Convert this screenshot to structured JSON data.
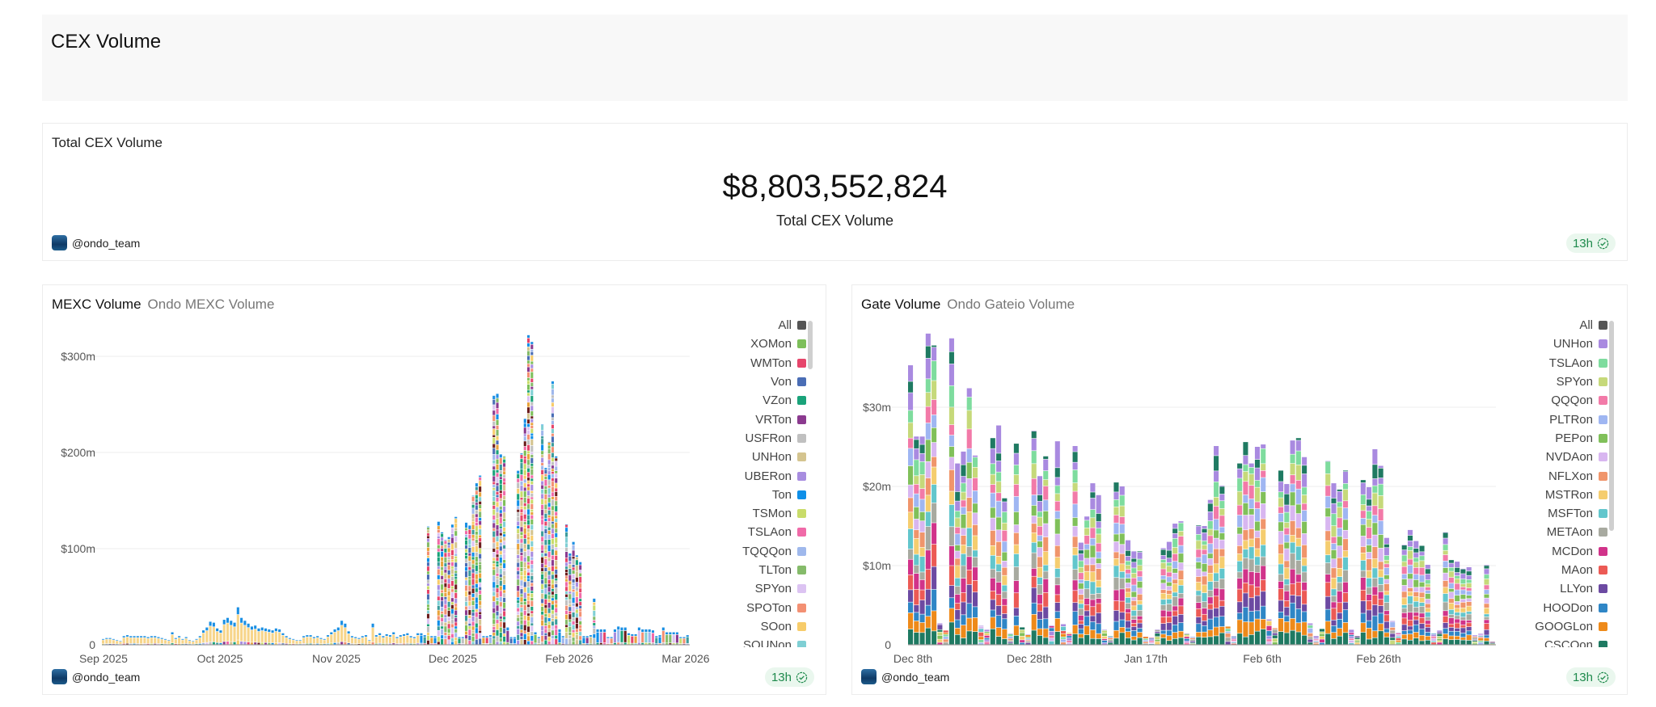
{
  "header": {
    "title": "CEX Volume"
  },
  "total": {
    "label": "Total CEX Volume",
    "value": "$8,803,552,824",
    "caption": "Total CEX Volume",
    "author": "@ondo_team",
    "freshness": "13h"
  },
  "mexc": {
    "title": "MEXC Volume",
    "subtitle": "Ondo MEXC Volume",
    "author": "@ondo_team",
    "freshness": "13h",
    "legend": [
      {
        "label": "All",
        "color": "#555555"
      },
      {
        "label": "XOMon",
        "color": "#7dbf5a"
      },
      {
        "label": "WMTon",
        "color": "#e6456b"
      },
      {
        "label": "Von",
        "color": "#4a6db5"
      },
      {
        "label": "VZon",
        "color": "#1aa37a"
      },
      {
        "label": "VRTon",
        "color": "#8b3a8f"
      },
      {
        "label": "USFRon",
        "color": "#c0c0c0"
      },
      {
        "label": "UNHon",
        "color": "#d4c48f"
      },
      {
        "label": "UBERon",
        "color": "#a88de0"
      },
      {
        "label": "Ton",
        "color": "#0f8fe8"
      },
      {
        "label": "TSMon",
        "color": "#c9dc6a"
      },
      {
        "label": "TSLAon",
        "color": "#f06aa8"
      },
      {
        "label": "TQQQon",
        "color": "#9fb8ec"
      },
      {
        "label": "TLTon",
        "color": "#85bb6a"
      },
      {
        "label": "SPYon",
        "color": "#dcc3f2"
      },
      {
        "label": "SPOTon",
        "color": "#f39073"
      },
      {
        "label": "SOon",
        "color": "#f7cc6a"
      },
      {
        "label": "SOUNon",
        "color": "#7fcfd4"
      }
    ]
  },
  "gate": {
    "title": "Gate Volume",
    "subtitle": "Ondo Gateio Volume",
    "author": "@ondo_team",
    "freshness": "13h",
    "legend": [
      {
        "label": "All",
        "color": "#555555"
      },
      {
        "label": "UNHon",
        "color": "#a98ae0"
      },
      {
        "label": "TSLAon",
        "color": "#7edc9e"
      },
      {
        "label": "SPYon",
        "color": "#c6d97a"
      },
      {
        "label": "QQQon",
        "color": "#f27aa8"
      },
      {
        "label": "PLTRon",
        "color": "#9fb6f2"
      },
      {
        "label": "PEPon",
        "color": "#80c05a"
      },
      {
        "label": "NVDAon",
        "color": "#d8b6f0"
      },
      {
        "label": "NFLXon",
        "color": "#f0956b"
      },
      {
        "label": "MSTRon",
        "color": "#f5cd6f"
      },
      {
        "label": "MSFTon",
        "color": "#62c6cc"
      },
      {
        "label": "METAon",
        "color": "#a8aaa0"
      },
      {
        "label": "MCDon",
        "color": "#d1338a"
      },
      {
        "label": "MAon",
        "color": "#ec5a55"
      },
      {
        "label": "LLYon",
        "color": "#6c4aa2"
      },
      {
        "label": "HOODon",
        "color": "#2f86c6"
      },
      {
        "label": "GOOGLon",
        "color": "#ee8a1a"
      },
      {
        "label": "CSCOon",
        "color": "#1f7a62"
      }
    ]
  },
  "chart_data": [
    {
      "type": "bar",
      "stacked": true,
      "title": "MEXC Volume",
      "x_ticks": [
        "Sep 2025",
        "Oct 2025",
        "Nov 2025",
        "Dec 2025",
        "Feb 2026",
        "Mar 2026"
      ],
      "y_ticks": [
        "0",
        "$100m",
        "$200m",
        "$300m"
      ],
      "y_tick_values": [
        0,
        100,
        200,
        300
      ],
      "ylim": [
        0,
        330
      ],
      "y_unit": "$m",
      "grid": true,
      "legend": "right",
      "daily_totals": [
        6,
        7,
        7,
        6,
        5,
        4,
        9,
        10,
        9,
        9,
        9,
        9,
        9,
        8,
        9,
        9,
        8,
        7,
        6,
        5,
        13,
        7,
        9,
        6,
        8,
        5,
        4,
        6,
        9,
        15,
        18,
        24,
        23,
        17,
        15,
        26,
        28,
        25,
        23,
        39,
        28,
        25,
        22,
        19,
        20,
        17,
        18,
        17,
        16,
        15,
        17,
        16,
        12,
        9,
        7,
        6,
        5,
        5,
        9,
        10,
        10,
        8,
        9,
        7,
        6,
        10,
        13,
        16,
        18,
        25,
        22,
        14,
        9,
        8,
        7,
        9,
        10,
        5,
        22,
        10,
        12,
        9,
        11,
        10,
        13,
        8,
        10,
        11,
        12,
        9,
        8,
        12,
        12,
        10,
        123,
        9,
        9,
        128,
        117,
        109,
        112,
        125,
        133,
        8,
        8,
        127,
        124,
        155,
        168,
        176,
        9,
        9,
        10,
        259,
        261,
        198,
        196,
        18,
        8,
        8,
        181,
        199,
        235,
        322,
        315,
        13,
        8,
        229,
        184,
        211,
        274,
        196,
        16,
        9,
        125,
        95,
        107,
        93,
        86,
        9,
        9,
        10,
        48,
        16,
        16,
        16,
        8,
        8,
        16,
        19,
        18,
        18,
        12,
        11,
        11,
        18,
        16,
        16,
        16,
        15,
        9,
        10,
        18,
        13,
        13,
        13,
        13,
        8,
        8,
        10
      ]
    },
    {
      "type": "bar",
      "stacked": true,
      "title": "Gate Volume",
      "x_ticks": [
        "Dec 8th",
        "Dec 28th",
        "Jan 17th",
        "Feb 6th",
        "Feb 26th"
      ],
      "y_ticks": [
        "0",
        "$10m",
        "$20m",
        "$30m"
      ],
      "y_tick_values": [
        0,
        10,
        20,
        30
      ],
      "ylim": [
        0,
        40
      ],
      "y_unit": "$m",
      "grid": true,
      "legend": "right",
      "daily_totals": [
        35.3,
        26.3,
        26.3,
        39.3,
        37.8,
        2.7,
        1.8,
        38.7,
        22.9,
        24.4,
        32.4,
        23.9,
        2.4,
        1.9,
        26.1,
        27.7,
        18.5,
        1.4,
        25.4,
        2.2,
        1.3,
        27.0,
        21.3,
        23.8,
        2.4,
        25.7,
        2.6,
        1.5,
        25.1,
        12.9,
        16.2,
        20.4,
        18.9,
        1.9,
        1.1,
        20.5,
        20.0,
        13.2,
        11.8,
        11.8,
        1.0,
        0.9,
        1.9,
        12.2,
        13.0,
        15.3,
        15.6,
        1.4,
        1.0,
        15.1,
        15.0,
        18.3,
        25.1,
        20.1,
        2.3,
        1.1,
        22.9,
        25.6,
        22.9,
        25.0,
        25.3,
        3.2,
        2.1,
        22.0,
        20.3,
        25.8,
        26.1,
        23.7,
        2.7,
        1.1,
        2.0,
        23.2,
        20.4,
        19.6,
        22.0,
        1.9,
        1.1,
        20.8,
        19.9,
        24.7,
        22.6,
        13.5,
        3.0,
        1.5,
        12.6,
        14.5,
        13.1,
        12.5,
        10.1,
        1.4,
        1.8,
        14.2,
        10.7,
        10.5,
        9.6,
        9.8,
        1.2,
        1.4,
        10.1,
        0.4
      ]
    }
  ]
}
